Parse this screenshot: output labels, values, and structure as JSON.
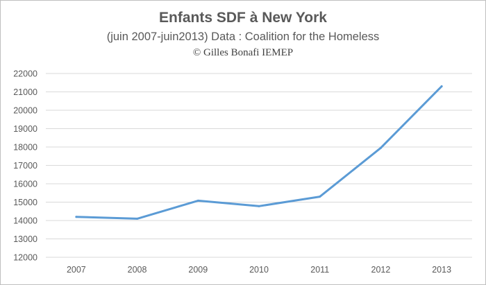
{
  "chart_data": {
    "type": "line",
    "title": "Enfants SDF à New York",
    "subtitle": "(juin 2007-juin2013) Data : Coalition for the Homeless",
    "credit": "© Gilles Bonafi   IEMEP",
    "xlabel": "",
    "ylabel": "",
    "categories": [
      "2007",
      "2008",
      "2009",
      "2010",
      "2011",
      "2012",
      "2013"
    ],
    "series": [
      {
        "values": [
          14200,
          14100,
          15080,
          14780,
          15300,
          17950,
          21300
        ]
      }
    ],
    "ylim": [
      12000,
      22000
    ],
    "yticks": [
      12000,
      13000,
      14000,
      15000,
      16000,
      17000,
      18000,
      19000,
      20000,
      21000,
      22000
    ],
    "grid": true,
    "legend": "none",
    "line_color": "#5b9bd5",
    "grid_color": "#d9d9d9",
    "text_color": "#595959"
  }
}
